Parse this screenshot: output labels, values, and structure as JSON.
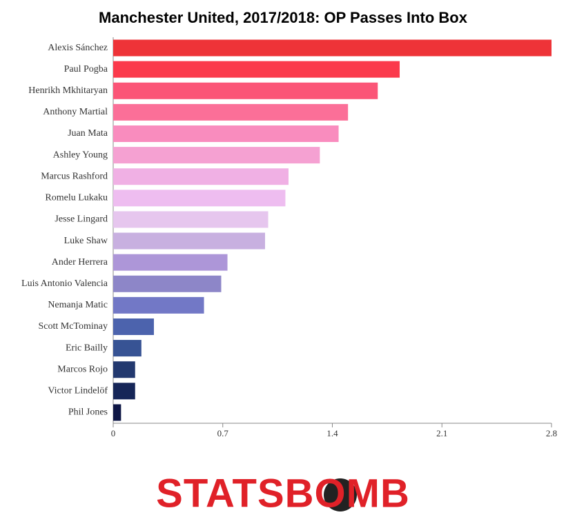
{
  "chart_data": {
    "type": "bar",
    "orientation": "horizontal",
    "title": "Manchester United, 2017/2018: OP Passes Into Box",
    "categories": [
      "Alexis Sánchez",
      "Paul Pogba",
      "Henrikh Mkhitaryan",
      "Anthony Martial",
      "Juan Mata",
      "Ashley Young",
      "Marcus Rashford",
      "Romelu Lukaku",
      "Jesse Lingard",
      "Luke Shaw",
      "Ander Herrera",
      "Luis Antonio Valencia",
      "Nemanja Matic",
      "Scott McTominay",
      "Eric Bailly",
      "Marcos Rojo",
      "Victor Lindelöf",
      "Phil Jones"
    ],
    "values": [
      2.8,
      1.83,
      1.69,
      1.5,
      1.44,
      1.32,
      1.12,
      1.1,
      0.99,
      0.97,
      0.73,
      0.69,
      0.58,
      0.26,
      0.18,
      0.14,
      0.14,
      0.05
    ],
    "colors": [
      "#ee3338",
      "#fb3a4c",
      "#fb5577",
      "#fb6f98",
      "#f98cbe",
      "#f5a1d2",
      "#f0b0e4",
      "#eebdf0",
      "#e6c6ee",
      "#c8b0e0",
      "#ad96d8",
      "#8d86c8",
      "#7278c6",
      "#4c63ad",
      "#375394",
      "#23396f",
      "#162658",
      "#0e1645"
    ],
    "xlim": [
      0,
      2.8
    ],
    "xticks": [
      0,
      0.7,
      1.4,
      2.1,
      2.8
    ]
  },
  "logo": "STATSBOMB"
}
